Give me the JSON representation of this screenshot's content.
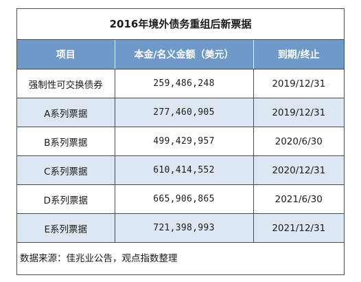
{
  "table": {
    "title": "2016年境外债务重组后新票据",
    "headers": [
      "项目",
      "本金/名义金额（美元）",
      "到期/终止"
    ],
    "rows": [
      {
        "item": "强制性可交换债券",
        "amount": "259,486,248",
        "maturity": "2019/12/31"
      },
      {
        "item": "A系列票据",
        "amount": "277,460,905",
        "maturity": "2019/12/31"
      },
      {
        "item": "B系列票据",
        "amount": "499,429,957",
        "maturity": "2020/6/30"
      },
      {
        "item": "C系列票据",
        "amount": "610,414,552",
        "maturity": "2020/12/31"
      },
      {
        "item": "D系列票据",
        "amount": "665,906,865",
        "maturity": "2021/6/30"
      },
      {
        "item": "E系列票据",
        "amount": "721,398,993",
        "maturity": "2021/12/31"
      }
    ],
    "source": "数据来源：佳兆业公告，观点指数整理"
  },
  "colors": {
    "header_bg": "#6f99c9",
    "header_text": "#ffffff",
    "alt_row_bg": "#dde7f2",
    "border": "#4a4a4a"
  }
}
